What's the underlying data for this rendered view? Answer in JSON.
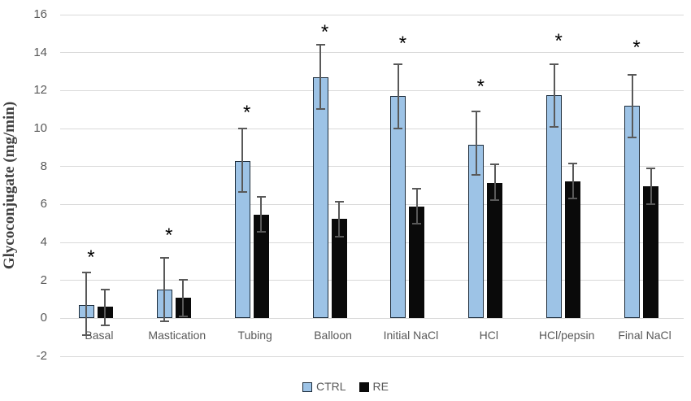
{
  "chart_data": {
    "type": "bar",
    "title": "",
    "xlabel": "",
    "ylabel": "Glycoconjugate (mg/min)",
    "ylim": [
      -2,
      16
    ],
    "yticks": [
      16,
      14,
      12,
      10,
      8,
      6,
      4,
      2,
      0,
      -2
    ],
    "grid": true,
    "legend_position": "bottom-center",
    "categories": [
      "Basal",
      "Mastication",
      "Tubing",
      "Balloon",
      "Initial NaCl",
      "HCl",
      "HCl/pepsin",
      "Final NaCl"
    ],
    "series": [
      {
        "name": "CTRL",
        "fill": "#9dc3e6",
        "border": "#1c2b3a",
        "values": [
          0.7,
          1.5,
          8.3,
          12.7,
          11.7,
          9.15,
          11.75,
          11.2
        ],
        "err_low": [
          -0.9,
          -0.15,
          6.65,
          11.05,
          10.0,
          7.55,
          10.1,
          9.55
        ],
        "err_high": [
          2.4,
          3.2,
          10.0,
          14.4,
          13.4,
          10.9,
          13.4,
          12.85
        ]
      },
      {
        "name": "RE",
        "fill": "#0a0a0a",
        "border": "#0a0a0a",
        "values": [
          0.6,
          1.1,
          5.45,
          5.25,
          5.9,
          7.15,
          7.2,
          6.95
        ],
        "err_low": [
          -0.35,
          0.1,
          4.55,
          4.3,
          5.0,
          6.25,
          6.3,
          6.0
        ],
        "err_high": [
          1.5,
          2.05,
          6.4,
          6.15,
          6.85,
          8.1,
          8.15,
          7.9
        ]
      }
    ],
    "annotations": {
      "symbol": "*",
      "note": "significance marker above each category pair",
      "y_values": [
        3.35,
        4.5,
        11.0,
        15.25,
        14.65,
        12.35,
        14.75,
        14.4
      ]
    },
    "colors": {
      "gridline": "#d9d9d9",
      "tick_label": "#595959",
      "category_label": "#595959",
      "axis_title": "#3f3f3f",
      "error_bar": "#595959",
      "annotation": "#000000",
      "background": "#ffffff"
    }
  }
}
